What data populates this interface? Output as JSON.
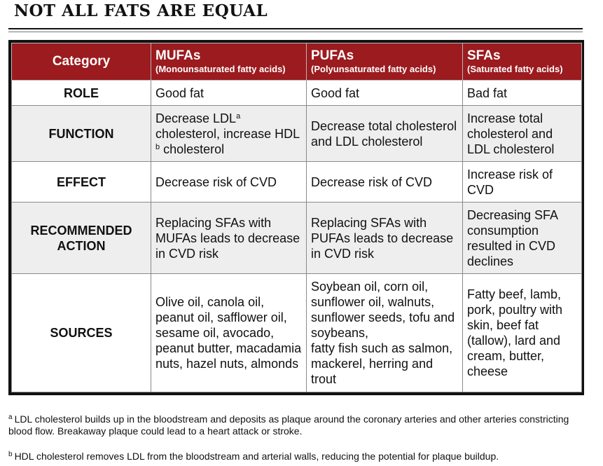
{
  "title": "NOT ALL FATS ARE EQUAL",
  "header": {
    "category": "Category",
    "columns": [
      {
        "name": "MUFAs",
        "sub": "(Monounsaturated fatty acids)"
      },
      {
        "name": "PUFAs",
        "sub": "(Polyunsaturated fatty acids)"
      },
      {
        "name": "SFAs",
        "sub": "(Saturated fatty acids)"
      }
    ]
  },
  "rows": {
    "role": {
      "label": "ROLE",
      "mufa": "Good fat",
      "pufa": "Good fat",
      "sfa": "Bad fat"
    },
    "function": {
      "label": "FUNCTION",
      "mufa": {
        "part1": "Decrease LDL",
        "sup1": "a",
        "part2": " cholesterol, increase HDL ",
        "sup2": "b",
        "part3": " cholesterol"
      },
      "pufa": "Decrease total cholesterol and LDL cholesterol",
      "sfa": "Increase total cholesterol and LDL cholesterol"
    },
    "effect": {
      "label": "EFFECT",
      "mufa": "Decrease risk of CVD",
      "pufa": "Decrease risk of CVD",
      "sfa": "Increase risk of CVD"
    },
    "action": {
      "label_line1": "RECOMMENDED",
      "label_line2": "ACTION",
      "mufa": "Replacing SFAs with MUFAs leads to decrease in CVD risk",
      "pufa": "Replacing SFAs with PUFAs leads to decrease in CVD risk",
      "sfa": "Decreasing SFA consumption resulted in CVD declines"
    },
    "sources": {
      "label": "SOURCES",
      "mufa": "Olive oil, canola oil, peanut oil, safflower oil, sesame oil, avocado, peanut butter, macadamia nuts, hazel nuts, almonds",
      "pufa_line1": "Soybean oil, corn oil, sunflower oil, walnuts, sunflower seeds, tofu and soybeans,",
      "pufa_line2": "fatty fish such as salmon, mackerel, herring and trout",
      "sfa": "Fatty beef, lamb, pork, poultry with skin, beef fat (tallow), lard and cream, butter, cheese"
    }
  },
  "footnotes": [
    {
      "mark": "a",
      "text": "LDL cholesterol builds up in the bloodstream and deposits as plaque around the coronary arteries and other arteries constricting blood flow. Breakaway plaque could lead to a heart attack or stroke."
    },
    {
      "mark": "b",
      "text": "HDL cholesterol removes LDL from the bloodstream and arterial walls, reducing the potential for plaque buildup."
    }
  ]
}
